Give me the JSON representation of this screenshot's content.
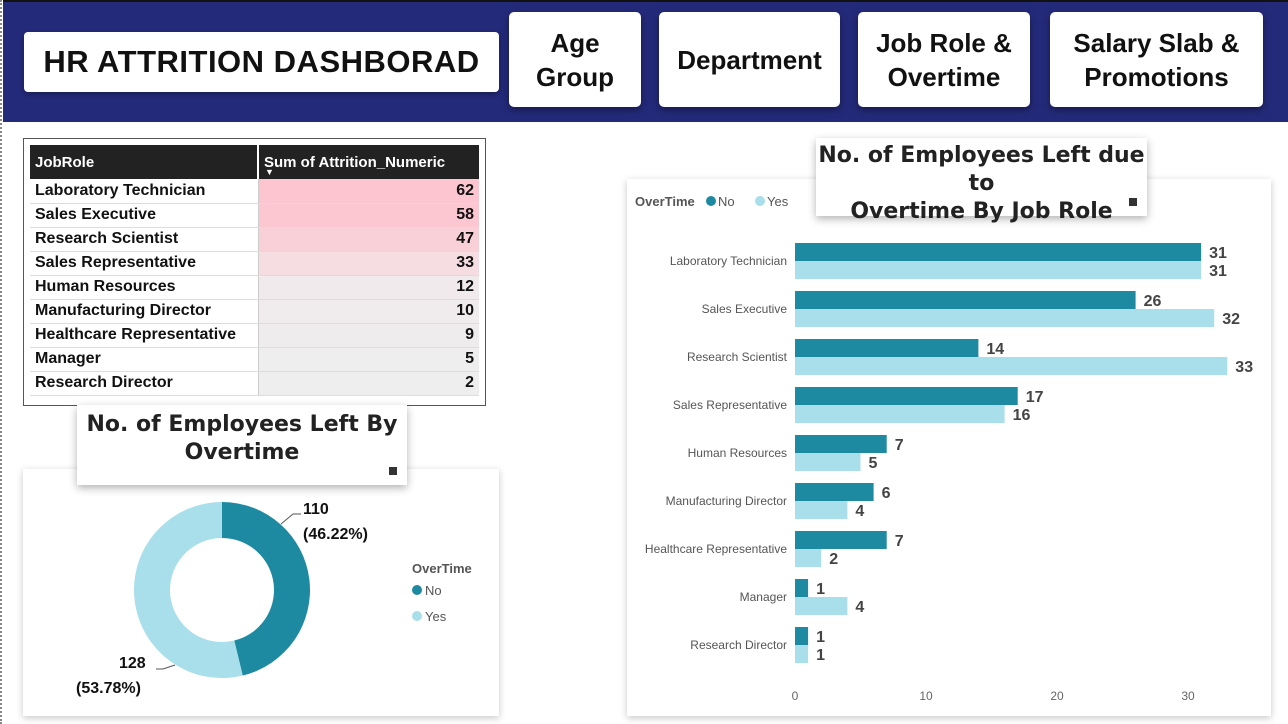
{
  "header": {
    "title": "HR ATTRITION DASHBORAD",
    "nav": [
      {
        "label_1": "Age",
        "label_2": "Group"
      },
      {
        "label_1": "Department",
        "label_2": ""
      },
      {
        "label_1": "Job Role &",
        "label_2": "Overtime"
      },
      {
        "label_1": "Salary Slab &",
        "label_2": "Promotions"
      }
    ]
  },
  "table": {
    "col1": "JobRole",
    "col2": "Sum of Attrition_Numeric",
    "rows": [
      {
        "role": "Laboratory Technician",
        "value": "62"
      },
      {
        "role": "Sales Executive",
        "value": "58"
      },
      {
        "role": "Research Scientist",
        "value": "47"
      },
      {
        "role": "Sales Representative",
        "value": "33"
      },
      {
        "role": "Human Resources",
        "value": "12"
      },
      {
        "role": "Manufacturing Director",
        "value": "10"
      },
      {
        "role": "Healthcare Representative",
        "value": "9"
      },
      {
        "role": "Manager",
        "value": "5"
      },
      {
        "role": "Research Director",
        "value": "2"
      }
    ],
    "heat_colors": [
      "#fcc5cf",
      "#fcc7d1",
      "#fad0d8",
      "#f6dde2",
      "#f1eaec",
      "#f0ebed",
      "#efeced",
      "#eeeeee",
      "#eeeeee"
    ]
  },
  "donut": {
    "title_1": "No. of Employees Left By",
    "title_2": "Overtime",
    "legend_title": "OverTime",
    "colors": {
      "No": "#1d8aa1",
      "Yes": "#a8dfeb"
    }
  },
  "bars": {
    "title_1": "No. of Employees Left due to",
    "title_2": "Overtime By Job Role",
    "legend_title": "OverTime",
    "colors": {
      "No": "#1d8aa1",
      "Yes": "#a8dfeb"
    }
  },
  "chart_data": [
    {
      "type": "pie",
      "title": "No. of Employees Left By Overtime",
      "legend": {
        "title": "OverTime",
        "entries": [
          "No",
          "Yes"
        ],
        "placement": "right"
      },
      "slices": [
        {
          "label": "No",
          "value": 110,
          "percent_label": "(46.22%)"
        },
        {
          "label": "Yes",
          "value": 128,
          "percent_label": "(53.78%)"
        }
      ]
    },
    {
      "type": "bar",
      "orientation": "horizontal",
      "title": "No. of Employees Left due to Overtime By Job Role",
      "legend": {
        "title": "OverTime",
        "entries": [
          "No",
          "Yes"
        ],
        "placement": "top-left"
      },
      "categories": [
        "Laboratory Technician",
        "Sales Executive",
        "Research Scientist",
        "Sales Representative",
        "Human Resources",
        "Manufacturing Director",
        "Healthcare Representative",
        "Manager",
        "Research Director"
      ],
      "series": [
        {
          "name": "No",
          "values": [
            31,
            26,
            14,
            17,
            7,
            6,
            7,
            1,
            1
          ]
        },
        {
          "name": "Yes",
          "values": [
            31,
            32,
            33,
            16,
            5,
            4,
            2,
            4,
            1
          ]
        }
      ],
      "xticks": [
        "0",
        "10",
        "20",
        "30"
      ],
      "xlim": [
        0,
        35
      ],
      "grid": false
    }
  ]
}
